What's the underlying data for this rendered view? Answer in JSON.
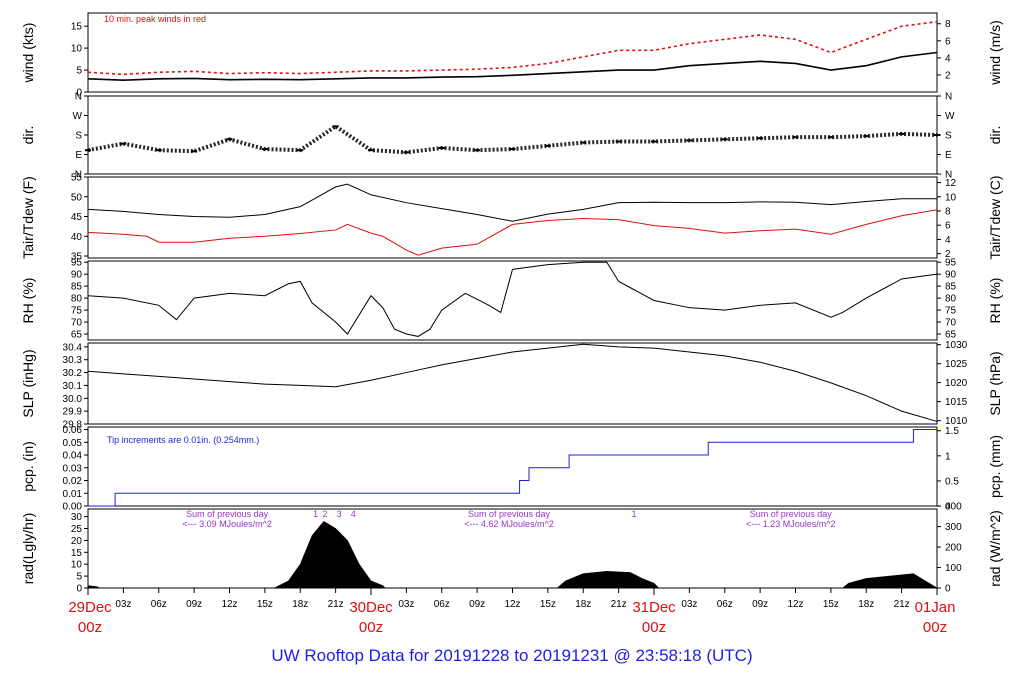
{
  "chart_data": {
    "type": "line",
    "title": "UW Rooftop Data for 20191228  to  20191231 @ 23:58:18  (UTC)",
    "x_axis": {
      "range_hours": [
        0,
        72
      ],
      "day_labels": [
        {
          "hour": 0,
          "date": "29Dec",
          "time": "00z"
        },
        {
          "hour": 24,
          "date": "30Dec",
          "time": "00z"
        },
        {
          "hour": 48,
          "date": "31Dec",
          "time": "00z"
        },
        {
          "hour": 72,
          "date": "01Jan",
          "time": "00z"
        }
      ],
      "hour_ticks": [
        {
          "hour": 3,
          "label": "03z"
        },
        {
          "hour": 6,
          "label": "06z"
        },
        {
          "hour": 9,
          "label": "09z"
        },
        {
          "hour": 12,
          "label": "12z"
        },
        {
          "hour": 15,
          "label": "15z"
        },
        {
          "hour": 18,
          "label": "18z"
        },
        {
          "hour": 21,
          "label": "21z"
        },
        {
          "hour": 27,
          "label": "03z"
        },
        {
          "hour": 30,
          "label": "06z"
        },
        {
          "hour": 33,
          "label": "09z"
        },
        {
          "hour": 36,
          "label": "12z"
        },
        {
          "hour": 39,
          "label": "15z"
        },
        {
          "hour": 42,
          "label": "18z"
        },
        {
          "hour": 45,
          "label": "21z"
        },
        {
          "hour": 51,
          "label": "03z"
        },
        {
          "hour": 54,
          "label": "06z"
        },
        {
          "hour": 57,
          "label": "09z"
        },
        {
          "hour": 60,
          "label": "12z"
        },
        {
          "hour": 63,
          "label": "15z"
        },
        {
          "hour": 66,
          "label": "18z"
        },
        {
          "hour": 69,
          "label": "21z"
        }
      ]
    },
    "panels": [
      {
        "id": "wind",
        "ylabel": "wind (kts)",
        "ylabel_right": "wind (m/s)",
        "ylim": [
          0,
          18
        ],
        "ticks": [
          "0",
          "5",
          "10",
          "15"
        ],
        "tick_values": [
          0,
          5,
          10,
          15
        ],
        "right_ticks": [
          "2",
          "4",
          "6",
          "8"
        ],
        "right_tick_values": [
          3.888,
          7.776,
          11.663,
          15.551
        ],
        "annotation": "10 min. peak winds in red",
        "annotation_color": "#e01010",
        "series": [
          {
            "name": "wind",
            "color": "#000000",
            "x": [
              0,
              3,
              6,
              9,
              12,
              15,
              18,
              21,
              24,
              27,
              30,
              33,
              36,
              39,
              42,
              45,
              48,
              51,
              54,
              57,
              60,
              63,
              66,
              69,
              72
            ],
            "y": [
              3,
              2.7,
              3,
              3.1,
              2.8,
              2.9,
              2.8,
              3,
              3.2,
              3.2,
              3.4,
              3.5,
              3.8,
              4.2,
              4.6,
              5,
              5,
              6,
              6.5,
              7,
              6.5,
              5,
              6,
              8,
              9
            ]
          },
          {
            "name": "peak",
            "color": "#e01010",
            "style": "dash",
            "x": [
              0,
              3,
              6,
              9,
              12,
              15,
              18,
              21,
              24,
              27,
              30,
              33,
              36,
              39,
              42,
              45,
              48,
              51,
              54,
              57,
              60,
              63,
              66,
              69,
              72
            ],
            "y": [
              4.5,
              4,
              4.5,
              4.7,
              4.2,
              4.4,
              4.2,
              4.5,
              4.8,
              4.8,
              5,
              5.2,
              5.6,
              6.5,
              8,
              9.5,
              9.5,
              11,
              12,
              13,
              12,
              9,
              12,
              15,
              16
            ]
          }
        ]
      },
      {
        "id": "dir",
        "ylabel": "dir.",
        "ylabel_right": "dir.",
        "ylim": [
          0,
          360
        ],
        "ticks": [
          "N",
          "E",
          "S",
          "W",
          "N"
        ],
        "tick_values": [
          0,
          90,
          180,
          270,
          360
        ],
        "right_ticks": [
          "N",
          "E",
          "S",
          "W",
          "N"
        ],
        "right_tick_values": [
          0,
          90,
          180,
          270,
          360
        ],
        "series": [
          {
            "name": "direction",
            "color": "#000000",
            "style": "scatter",
            "x": [
              0,
              3,
              6,
              9,
              12,
              15,
              18,
              21,
              24,
              27,
              30,
              33,
              36,
              39,
              42,
              45,
              48,
              51,
              54,
              57,
              60,
              63,
              66,
              69,
              72
            ],
            "y": [
              110,
              140,
              110,
              105,
              160,
              115,
              110,
              220,
              110,
              100,
              120,
              110,
              115,
              130,
              145,
              150,
              150,
              155,
              160,
              165,
              170,
              170,
              175,
              185,
              180
            ]
          }
        ]
      },
      {
        "id": "temp",
        "ylabel": "Tair/Tdew (F)",
        "ylabel_right": "Tair/Tdew (C)",
        "ylim": [
          34.5,
          55
        ],
        "ticks": [
          "35",
          "40",
          "45",
          "50",
          "55"
        ],
        "tick_values": [
          35,
          40,
          45,
          50,
          55
        ],
        "right_ticks": [
          "2",
          "4",
          "6",
          "8",
          "10",
          "12"
        ],
        "right_tick_values": [
          35.6,
          39.2,
          42.8,
          46.4,
          50,
          53.6
        ],
        "series": [
          {
            "name": "Tair",
            "color": "#000000",
            "x": [
              0,
              3,
              6,
              9,
              12,
              15,
              18,
              19.5,
              21,
              22,
              24,
              27,
              30,
              33,
              36,
              39,
              42,
              45,
              48,
              51,
              54,
              57,
              60,
              63,
              66,
              69,
              72
            ],
            "y": [
              46.8,
              46.3,
              45.5,
              45,
              44.8,
              45.5,
              47.5,
              50,
              52.5,
              53.2,
              50.5,
              48.5,
              47,
              45.5,
              43.8,
              45.6,
              46.8,
              48.5,
              48.6,
              48.5,
              48.5,
              48.7,
              48.6,
              48,
              48.8,
              49.5,
              49.5
            ]
          },
          {
            "name": "Tdew",
            "color": "#e01010",
            "x": [
              0,
              3,
              5,
              6,
              9,
              12,
              15,
              18,
              21,
              22,
              24,
              25,
              27,
              28,
              30,
              33,
              36,
              39,
              42,
              45,
              48,
              51,
              54,
              57,
              60,
              63,
              66,
              69,
              72
            ],
            "y": [
              41,
              40.5,
              40,
              38.5,
              38.5,
              39.5,
              40,
              40.7,
              41.6,
              43,
              40.8,
              40,
              36.5,
              35.2,
              37,
              38,
              43,
              44,
              44.5,
              44.2,
              42.7,
              42,
              40.8,
              41.4,
              41.8,
              40.5,
              43,
              45.2,
              46.7
            ]
          }
        ]
      },
      {
        "id": "rh",
        "ylabel": "RH (%)",
        "ylabel_right": "RH (%)",
        "ylim": [
          62.5,
          95.5
        ],
        "ticks": [
          "65",
          "70",
          "75",
          "80",
          "85",
          "90",
          "95"
        ],
        "tick_values": [
          65,
          70,
          75,
          80,
          85,
          90,
          95
        ],
        "right_ticks": [
          "65",
          "70",
          "75",
          "80",
          "85",
          "90",
          "95"
        ],
        "right_tick_values": [
          65,
          70,
          75,
          80,
          85,
          90,
          95
        ],
        "series": [
          {
            "name": "RH",
            "color": "#000000",
            "x": [
              0,
              3,
              6,
              7.5,
              9,
              12,
              15,
              17,
              18,
              19,
              21,
              22,
              24,
              25,
              26,
              27,
              28,
              29,
              30,
              32,
              34,
              35,
              36,
              39,
              42,
              44,
              45,
              48,
              51,
              54,
              57,
              60,
              63,
              64,
              66,
              69,
              72
            ],
            "y": [
              81,
              80,
              77,
              71,
              80,
              82,
              81,
              86,
              87,
              78,
              70,
              65,
              81,
              76,
              67,
              65,
              64,
              67,
              75,
              82,
              77,
              74,
              92,
              94,
              95,
              95,
              87,
              79,
              76,
              75,
              77,
              78,
              72,
              74,
              80,
              88,
              90
            ]
          }
        ]
      },
      {
        "id": "slp",
        "ylabel": "SLP (inHg)",
        "ylabel_right": "SLP (hPa)",
        "ylim": [
          29.8,
          30.43
        ],
        "ticks": [
          "29.8",
          "29.9",
          "30.0",
          "30.1",
          "30.2",
          "30.3",
          "30.4"
        ],
        "tick_values": [
          29.8,
          29.9,
          30.0,
          30.1,
          30.2,
          30.3,
          30.4
        ],
        "right_ticks": [
          "1010",
          "1015",
          "1020",
          "1025",
          "1030"
        ],
        "right_tick_values": [
          29.826,
          29.974,
          30.122,
          30.269,
          30.417
        ],
        "series": [
          {
            "name": "SLP",
            "color": "#000000",
            "x": [
              0,
              3,
              6,
              9,
              12,
              15,
              18,
              21,
              24,
              27,
              30,
              33,
              36,
              39,
              42,
              45,
              48,
              51,
              54,
              57,
              60,
              63,
              66,
              69,
              72
            ],
            "y": [
              30.21,
              30.19,
              30.17,
              30.15,
              30.13,
              30.11,
              30.1,
              30.09,
              30.14,
              30.2,
              30.26,
              30.31,
              30.36,
              30.39,
              30.42,
              30.4,
              30.39,
              30.36,
              30.33,
              30.28,
              30.21,
              30.12,
              30.02,
              29.9,
              29.82
            ]
          }
        ]
      },
      {
        "id": "pcp",
        "ylabel": "pcp. (in)",
        "ylabel_right": "pcp. (mm)",
        "ylim": [
          0,
          0.062
        ],
        "ticks": [
          "0.00",
          "0.01",
          "0.02",
          "0.03",
          "0.04",
          "0.05",
          "0.06"
        ],
        "tick_values": [
          0,
          0.01,
          0.02,
          0.03,
          0.04,
          0.05,
          0.06
        ],
        "right_ticks": [
          "0",
          "0.5",
          "1",
          "1.5"
        ],
        "right_tick_values": [
          0,
          0.01969,
          0.03937,
          0.05906
        ],
        "annotation": "Tip increments are 0.01in. (0.254mm.)",
        "annotation_color": "#1f1fe0",
        "series": [
          {
            "name": "pcp",
            "color": "#1f1fe0",
            "style": "step",
            "x": [
              0,
              2.3,
              36.6,
              37.4,
              40.8,
              52.6,
              70,
              72
            ],
            "y": [
              0,
              0.01,
              0.02,
              0.03,
              0.04,
              0.05,
              0.06,
              0.06
            ]
          }
        ]
      },
      {
        "id": "rad",
        "ylabel": "rad(Lgly/hr)",
        "ylabel_right": "rad (W/m^2)",
        "ylim": [
          0,
          33.2
        ],
        "ticks": [
          "0",
          "5",
          "10",
          "15",
          "20",
          "25",
          "30"
        ],
        "tick_values": [
          0,
          5,
          10,
          15,
          20,
          25,
          30
        ],
        "right_ticks": [
          "0",
          "100",
          "200",
          "300",
          "400"
        ],
        "right_tick_values": [
          0,
          8.6,
          17.2,
          25.8,
          34.4
        ],
        "annotations": [
          {
            "hour": 11.8,
            "text": "Sum of previous day"
          },
          {
            "hour": 11.8,
            "text": "<--- 3.09 MJoules/m^2"
          },
          {
            "hour": 35.7,
            "text": "Sum of previous day"
          },
          {
            "hour": 35.7,
            "text": "<--- 4.62 MJoules/m^2"
          },
          {
            "hour": 59.6,
            "text": "Sum of previous day"
          },
          {
            "hour": 59.6,
            "text": "<--- 1.23 MJoules/m^2"
          }
        ],
        "markers": [
          {
            "hour": 19.3,
            "text": "1"
          },
          {
            "hour": 20.1,
            "text": "2"
          },
          {
            "hour": 21.3,
            "text": "3"
          },
          {
            "hour": 22.5,
            "text": "4"
          },
          {
            "hour": 46.3,
            "text": "1"
          }
        ],
        "annotation_color": "#9933cc",
        "series": [
          {
            "name": "radiation",
            "color": "#000000",
            "style": "area",
            "x": [
              0,
              0.8,
              1,
              15.8,
              17,
              18,
              19,
              20,
              21,
              22,
              23,
              24,
              25,
              25.2,
              39.8,
              40.5,
              42,
              44,
              46,
              47,
              48,
              48.4,
              64,
              64.5,
              66,
              68,
              70,
              71,
              72
            ],
            "y": [
              1,
              0.5,
              0,
              0,
              3,
              10,
              22,
              28,
              25,
              20,
              10,
              3,
              1,
              0,
              0,
              3,
              6,
              7,
              6.5,
              4,
              2,
              0,
              0,
              2,
              4,
              5,
              6,
              3,
              0
            ]
          }
        ]
      }
    ]
  }
}
